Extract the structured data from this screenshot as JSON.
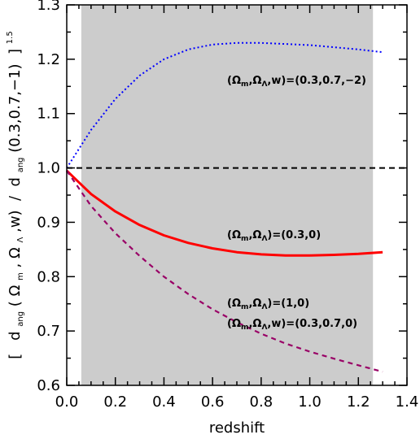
{
  "chart_data": {
    "type": "line",
    "title": "",
    "xlabel": "redshift",
    "ylabel": {
      "bracket_open": "[",
      "num_base": "d",
      "num_sub": "ang",
      "num_args_open": "(",
      "omega_m_base": "Ω",
      "omega_m_sub": "m",
      "sep1": ",",
      "omega_l_base": "Ω",
      "omega_l_sub": "Λ",
      "num_args_tail": ",w)",
      "slash": " / ",
      "den_base": "d",
      "den_sub": "ang",
      "den_args": "(0.3,0.7,−1)",
      "bracket_close": " ]",
      "exponent": "1.5"
    },
    "xlim": [
      0.0,
      1.4
    ],
    "ylim": [
      0.6,
      1.3
    ],
    "x_ticks": [
      "0.0",
      "0.2",
      "0.4",
      "0.6",
      "0.8",
      "1.0",
      "1.2",
      "1.4"
    ],
    "y_ticks": [
      "0.6",
      "0.7",
      "0.8",
      "0.9",
      "1.0",
      "1.1",
      "1.2",
      "1.3"
    ],
    "shaded_region": {
      "x": [
        0.06,
        1.26
      ],
      "color": "#cccccc"
    },
    "reference_line": {
      "y": 1.0,
      "style": "dashed",
      "color": "#000000"
    },
    "grid": false,
    "series": [
      {
        "style": "dotted",
        "color": "#0000ff",
        "x": [
          0.0,
          0.1,
          0.2,
          0.3,
          0.4,
          0.5,
          0.6,
          0.7,
          0.8,
          0.9,
          1.0,
          1.1,
          1.2,
          1.3
        ],
        "y": [
          1.0,
          1.07,
          1.127,
          1.17,
          1.2,
          1.218,
          1.227,
          1.23,
          1.23,
          1.228,
          1.226,
          1.222,
          1.218,
          1.213
        ]
      },
      {
        "style": "solid",
        "color": "#ff0000",
        "x": [
          0.0,
          0.1,
          0.2,
          0.3,
          0.4,
          0.5,
          0.6,
          0.7,
          0.8,
          0.9,
          1.0,
          1.1,
          1.2,
          1.3
        ],
        "y": [
          0.995,
          0.952,
          0.92,
          0.895,
          0.876,
          0.862,
          0.852,
          0.845,
          0.841,
          0.839,
          0.839,
          0.84,
          0.842,
          0.845
        ]
      },
      {
        "style": "dashed",
        "color": "#990066",
        "x": [
          0.0,
          0.1,
          0.2,
          0.3,
          0.4,
          0.5,
          0.6,
          0.7,
          0.8,
          0.9,
          1.0,
          1.1,
          1.2,
          1.3
        ],
        "y": [
          0.995,
          0.93,
          0.88,
          0.838,
          0.8,
          0.768,
          0.74,
          0.716,
          0.695,
          0.677,
          0.662,
          0.649,
          0.637,
          0.625
        ]
      }
    ],
    "annotations": [
      {
        "x": 0.66,
        "y": 1.155,
        "base": "(Ω",
        "sub1": "m",
        "mid": ",Ω",
        "sub2": "Λ",
        "tail": ",w)=(0.3,0.7,−2)"
      },
      {
        "x": 0.66,
        "y": 0.871,
        "base": "(Ω",
        "sub1": "m",
        "mid": ",Ω",
        "sub2": "Λ",
        "tail": ")=(0.3,0)"
      },
      {
        "x": 0.66,
        "y": 0.745,
        "base": "(Ω",
        "sub1": "m",
        "mid": ",Ω",
        "sub2": "Λ",
        "tail": ")=(1,0)"
      },
      {
        "x": 0.66,
        "y": 0.708,
        "base": "(Ω",
        "sub1": "m",
        "mid": ",Ω",
        "sub2": "Λ",
        "tail": ",w)=(0.3,0.7,0)"
      }
    ]
  }
}
